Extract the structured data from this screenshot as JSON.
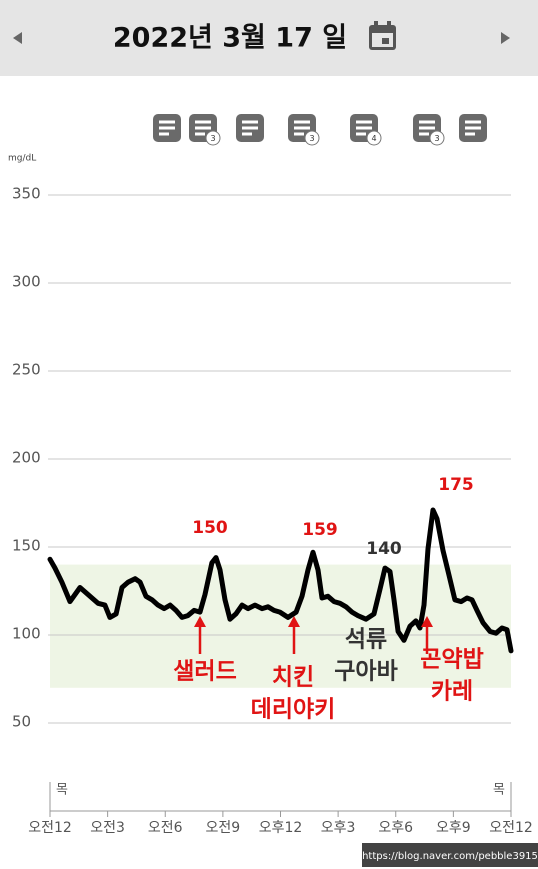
{
  "header": {
    "title": "2022년 3월 17 일"
  },
  "notes": {
    "badges": [
      null,
      3,
      null,
      3,
      4,
      3,
      null
    ]
  },
  "chart_data": {
    "type": "line",
    "y_label": "mg/dL",
    "x": [
      0,
      0.26,
      0.62,
      1.04,
      1.56,
      2.08,
      2.5,
      2.86,
      3.12,
      3.44,
      3.75,
      4.06,
      4.43,
      4.69,
      5,
      5.31,
      5.62,
      5.94,
      6.25,
      6.56,
      6.87,
      7.18,
      7.5,
      7.81,
      8.07,
      8.43,
      8.64,
      8.85,
      9.11,
      9.37,
      9.68,
      10,
      10.31,
      10.67,
      11.04,
      11.35,
      11.66,
      11.97,
      12.39,
      12.81,
      13.12,
      13.43,
      13.69,
      13.95,
      14.16,
      14.47,
      14.79,
      15.1,
      15.41,
      15.72,
      16.03,
      16.45,
      16.87,
      17.18,
      17.44,
      17.7,
      17.91,
      18.12,
      18.43,
      18.74,
      19.05,
      19.26,
      19.47,
      19.68,
      19.94,
      20.15,
      20.46,
      20.77,
      21.08,
      21.4,
      21.71,
      21.97,
      22.23,
      22.54,
      22.91,
      23.22,
      23.53,
      23.79,
      24
    ],
    "series": [
      {
        "color": "#000000",
        "values": [
          143,
          138,
          130,
          119,
          127,
          122,
          118,
          117,
          110,
          112,
          127,
          130,
          132,
          130,
          122,
          120,
          117,
          115,
          117,
          114,
          110,
          111,
          114,
          113,
          123,
          141,
          144,
          137,
          120,
          109,
          112,
          117,
          115,
          117,
          115,
          116,
          114,
          113,
          110,
          113,
          122,
          137,
          147,
          137,
          121,
          122,
          119,
          118,
          116,
          113,
          111,
          109,
          112,
          126,
          138,
          136,
          120,
          102,
          97,
          105,
          108,
          104,
          117,
          149,
          171,
          166,
          148,
          134,
          120,
          119,
          121,
          120,
          114,
          107,
          102,
          101,
          104,
          103,
          91
        ]
      }
    ],
    "xlim": [
      0,
      24
    ],
    "xticks": [
      {
        "value": 0,
        "label": "오전12"
      },
      {
        "value": 3,
        "label": "오전3"
      },
      {
        "value": 6,
        "label": "오전6"
      },
      {
        "value": 9,
        "label": "오전9"
      },
      {
        "value": 12,
        "label": "오후12"
      },
      {
        "value": 15,
        "label": "오후3"
      },
      {
        "value": 18,
        "label": "오후6"
      },
      {
        "value": 21,
        "label": "오후9"
      },
      {
        "value": 24,
        "label": "오전12"
      }
    ],
    "ylim": [
      0,
      350
    ],
    "yticks": [
      50,
      100,
      150,
      200,
      250,
      300,
      350
    ],
    "grid": true,
    "target_range": [
      70,
      140
    ],
    "target_color": "#eef5e5",
    "day_labels": [
      "목",
      "목"
    ],
    "peak_labels": [
      {
        "value": 150,
        "color": "#e01414"
      },
      {
        "value": 159,
        "color": "#e01414"
      },
      {
        "value": 140,
        "color": "#333333"
      },
      {
        "value": 175,
        "color": "#e01414"
      }
    ],
    "meals": [
      {
        "lines": [
          "샐러드"
        ],
        "color": "#e01414",
        "arrow": true
      },
      {
        "lines": [
          "치킨",
          "데리야키"
        ],
        "color": "#e01414",
        "arrow": true
      },
      {
        "lines": [
          "석류",
          "구아바"
        ],
        "color": "#333333",
        "arrow": false
      },
      {
        "lines": [
          "곤약밥",
          "카레"
        ],
        "color": "#e01414",
        "arrow": true
      }
    ]
  },
  "watermark": "https://blog.naver.com/pebble3915"
}
